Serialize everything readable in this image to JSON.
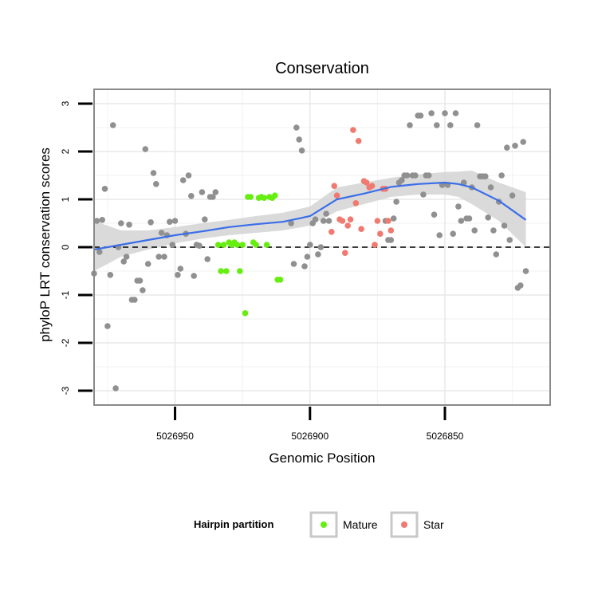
{
  "chart_data": {
    "type": "scatter",
    "title": "Conservation",
    "xlabel": "Genomic Position",
    "ylabel": "phyloP LRT conservation scores",
    "x_reversed": true,
    "xlim": [
      5026980,
      5026811
    ],
    "ylim": [
      -3.3,
      3.3
    ],
    "x_ticks": [
      5026950,
      5026900,
      5026850
    ],
    "y_ticks": [
      3,
      2,
      1,
      0,
      -1,
      -2,
      -3
    ],
    "reference_line": {
      "y": 0,
      "style": "dashed"
    },
    "grid": true,
    "legend": {
      "title": "Hairpin partition",
      "position": "bottom",
      "entries": [
        "Mature",
        "Star"
      ]
    },
    "colors": {
      "Mature": "#66ee11",
      "Star": "#f07a70",
      "Other": "#909090",
      "smooth": "#3a6ee8",
      "band": "#d3d3d3"
    },
    "series": [
      {
        "name": "",
        "group": "Other",
        "points": [
          [
            5026980,
            -0.55
          ],
          [
            5026979,
            0.55
          ],
          [
            5026978,
            -0.1
          ],
          [
            5026977,
            0.57
          ],
          [
            5026976,
            1.22
          ],
          [
            5026975,
            -1.65
          ],
          [
            5026974,
            -0.58
          ],
          [
            5026973,
            2.55
          ],
          [
            5026972,
            -2.95
          ],
          [
            5026971,
            0.0
          ],
          [
            5026970,
            0.5
          ],
          [
            5026969,
            -0.3
          ],
          [
            5026968,
            -0.2
          ],
          [
            5026967,
            0.47
          ],
          [
            5026966,
            -1.1
          ],
          [
            5026965,
            -1.1
          ],
          [
            5026964,
            -0.7
          ],
          [
            5026963,
            -0.7
          ],
          [
            5026962,
            -0.9
          ],
          [
            5026961,
            2.05
          ],
          [
            5026960,
            -0.35
          ],
          [
            5026959,
            0.52
          ],
          [
            5026958,
            1.55
          ],
          [
            5026957,
            1.32
          ],
          [
            5026956,
            -0.2
          ],
          [
            5026955,
            0.3
          ],
          [
            5026954,
            -0.2
          ],
          [
            5026953,
            0.25
          ],
          [
            5026952,
            0.53
          ],
          [
            5026951,
            0.05
          ],
          [
            5026950,
            0.55
          ],
          [
            5026949,
            -0.58
          ],
          [
            5026948,
            -0.45
          ],
          [
            5026947,
            1.4
          ],
          [
            5026946,
            0.28
          ],
          [
            5026945,
            1.5
          ],
          [
            5026944,
            1.07
          ],
          [
            5026943,
            -0.6
          ],
          [
            5026942,
            0.05
          ],
          [
            5026941,
            0.03
          ],
          [
            5026940,
            1.15
          ],
          [
            5026939,
            0.58
          ],
          [
            5026938,
            -0.25
          ],
          [
            5026937,
            1.05
          ],
          [
            5026936,
            1.05
          ],
          [
            5026935,
            1.15
          ],
          [
            5026907,
            0.5
          ],
          [
            5026906,
            -0.35
          ],
          [
            5026905,
            2.5
          ],
          [
            5026904,
            2.25
          ],
          [
            5026903,
            2.02
          ],
          [
            5026902,
            -0.4
          ],
          [
            5026901,
            -0.2
          ],
          [
            5026900,
            0.05
          ],
          [
            5026899,
            0.5
          ],
          [
            5026898,
            0.58
          ],
          [
            5026897,
            -0.15
          ],
          [
            5026896,
            0.0
          ],
          [
            5026895,
            0.55
          ],
          [
            5026894,
            0.7
          ],
          [
            5026893,
            0.55
          ],
          [
            5026872,
            0.55
          ],
          [
            5026871,
            0.15
          ],
          [
            5026870,
            0.15
          ],
          [
            5026869,
            0.6
          ],
          [
            5026868,
            0.95
          ],
          [
            5026867,
            1.35
          ],
          [
            5026866,
            1.4
          ],
          [
            5026865,
            1.5
          ],
          [
            5026864,
            1.5
          ],
          [
            5026863,
            2.55
          ],
          [
            5026862,
            1.5
          ],
          [
            5026861,
            1.5
          ],
          [
            5026860,
            2.75
          ],
          [
            5026859,
            2.75
          ],
          [
            5026858,
            1.1
          ],
          [
            5026857,
            1.5
          ],
          [
            5026856,
            1.5
          ],
          [
            5026855,
            2.8
          ],
          [
            5026854,
            0.68
          ],
          [
            5026853,
            2.55
          ],
          [
            5026852,
            0.25
          ],
          [
            5026851,
            1.3
          ],
          [
            5026850,
            2.8
          ],
          [
            5026849,
            1.3
          ],
          [
            5026848,
            2.55
          ],
          [
            5026847,
            0.28
          ],
          [
            5026846,
            2.8
          ],
          [
            5026845,
            0.85
          ],
          [
            5026844,
            0.55
          ],
          [
            5026843,
            1.35
          ],
          [
            5026842,
            0.6
          ],
          [
            5026841,
            0.6
          ],
          [
            5026840,
            1.25
          ],
          [
            5026839,
            0.35
          ],
          [
            5026838,
            2.55
          ],
          [
            5026837,
            1.48
          ],
          [
            5026836,
            1.48
          ],
          [
            5026835,
            1.48
          ],
          [
            5026834,
            0.62
          ],
          [
            5026833,
            1.25
          ],
          [
            5026832,
            0.35
          ],
          [
            5026831,
            -0.15
          ],
          [
            5026830,
            0.95
          ],
          [
            5026829,
            1.5
          ],
          [
            5026828,
            0.45
          ],
          [
            5026827,
            2.08
          ],
          [
            5026826,
            0.15
          ],
          [
            5026825,
            1.08
          ],
          [
            5026824,
            2.12
          ],
          [
            5026823,
            -0.85
          ],
          [
            5026822,
            -0.8
          ],
          [
            5026821,
            2.2
          ],
          [
            5026820,
            -0.5
          ]
        ]
      },
      {
        "name": "Mature",
        "group": "Mature",
        "points": [
          [
            5026934,
            0.05
          ],
          [
            5026933,
            -0.5
          ],
          [
            5026932,
            0.05
          ],
          [
            5026931,
            -0.5
          ],
          [
            5026930,
            0.1
          ],
          [
            5026929,
            0.05
          ],
          [
            5026928,
            0.1
          ],
          [
            5026927,
            0.05
          ],
          [
            5026926,
            -0.5
          ],
          [
            5026925,
            0.05
          ],
          [
            5026924,
            -1.38
          ],
          [
            5026923,
            1.05
          ],
          [
            5026922,
            1.05
          ],
          [
            5026921,
            0.1
          ],
          [
            5026920,
            0.05
          ],
          [
            5026919,
            1.03
          ],
          [
            5026918,
            1.05
          ],
          [
            5026917,
            1.03
          ],
          [
            5026916,
            0.05
          ],
          [
            5026915,
            1.05
          ],
          [
            5026914,
            1.03
          ],
          [
            5026913,
            1.08
          ],
          [
            5026912,
            -0.68
          ],
          [
            5026911,
            -0.68
          ]
        ]
      },
      {
        "name": "Star",
        "group": "Star",
        "points": [
          [
            5026892,
            0.32
          ],
          [
            5026891,
            1.28
          ],
          [
            5026890,
            1.08
          ],
          [
            5026889,
            0.58
          ],
          [
            5026888,
            0.55
          ],
          [
            5026887,
            -0.12
          ],
          [
            5026886,
            0.45
          ],
          [
            5026885,
            0.58
          ],
          [
            5026884,
            2.45
          ],
          [
            5026883,
            0.92
          ],
          [
            5026882,
            2.22
          ],
          [
            5026881,
            0.38
          ],
          [
            5026880,
            1.38
          ],
          [
            5026879,
            1.35
          ],
          [
            5026878,
            1.25
          ],
          [
            5026877,
            1.28
          ],
          [
            5026876,
            0.05
          ],
          [
            5026875,
            0.55
          ],
          [
            5026874,
            0.28
          ],
          [
            5026873,
            1.22
          ],
          [
            5026872,
            1.22
          ],
          [
            5026871,
            0.55
          ],
          [
            5026870,
            0.35
          ]
        ]
      }
    ],
    "smooth": {
      "x": [
        5026980,
        5026970,
        5026960,
        5026950,
        5026940,
        5026930,
        5026920,
        5026910,
        5026900,
        5026890,
        5026880,
        5026870,
        5026860,
        5026850,
        5026845,
        5026840,
        5026830,
        5026820
      ],
      "y": [
        -0.05,
        0.05,
        0.15,
        0.25,
        0.33,
        0.42,
        0.48,
        0.53,
        0.65,
        1.0,
        1.12,
        1.26,
        1.32,
        1.35,
        1.32,
        1.25,
        0.97,
        0.57
      ],
      "lo": [
        -0.5,
        -0.2,
        -0.05,
        0.08,
        0.18,
        0.25,
        0.3,
        0.35,
        0.45,
        0.75,
        0.9,
        1.05,
        1.1,
        1.1,
        1.05,
        0.9,
        0.55,
        0.0
      ],
      "hi": [
        0.55,
        0.35,
        0.35,
        0.42,
        0.5,
        0.57,
        0.65,
        0.72,
        0.85,
        1.25,
        1.35,
        1.45,
        1.52,
        1.57,
        1.58,
        1.6,
        1.35,
        1.15
      ]
    }
  }
}
